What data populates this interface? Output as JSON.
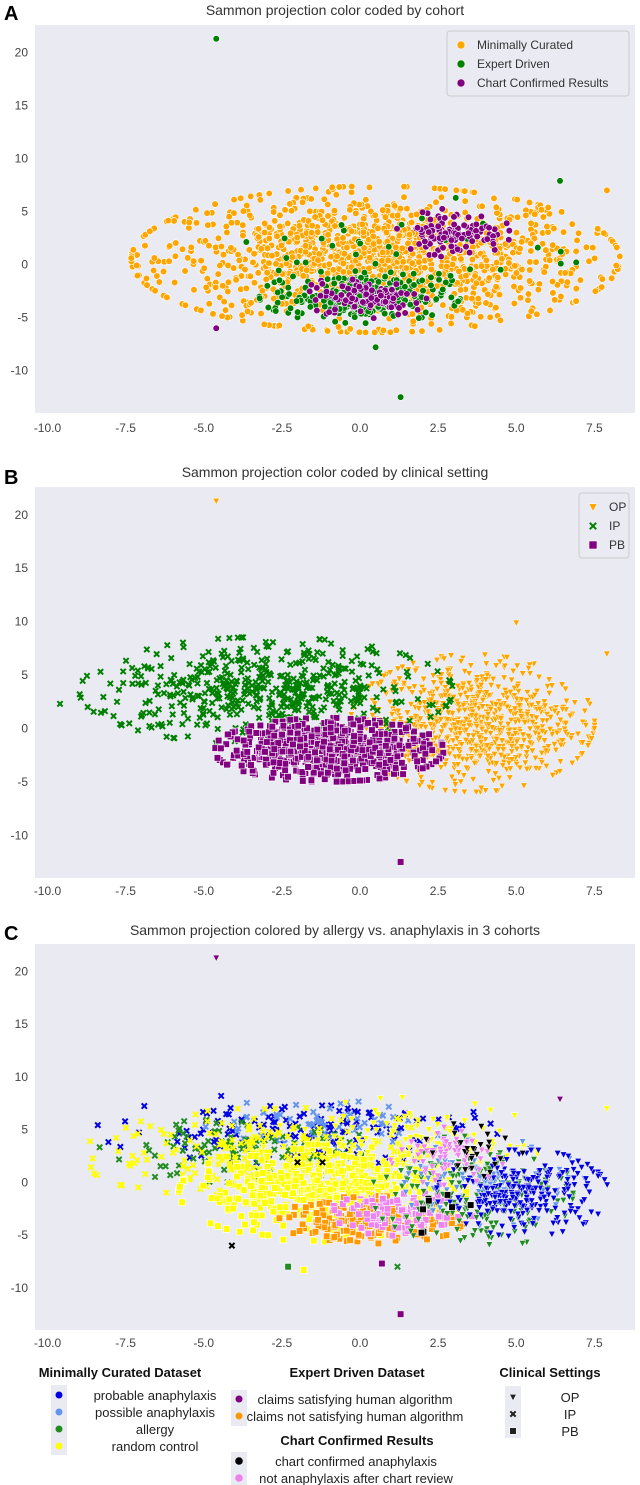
{
  "chart_data": [
    {
      "type": "scatter",
      "letter": "A",
      "title": "Sammon projection color coded by cohort",
      "xlim": [
        -10.4,
        8.8
      ],
      "ylim": [
        -14,
        22.6
      ],
      "xticks": [
        -10.0,
        -7.5,
        -5.0,
        -2.5,
        0.0,
        2.5,
        5.0,
        7.5
      ],
      "yticks": [
        20,
        15,
        10,
        5,
        0,
        -5,
        -10
      ],
      "grid": false,
      "legend_position": "top-right",
      "legend": [
        {
          "label": "Minimally Curated",
          "color": "#FFA500",
          "marker": "circle"
        },
        {
          "label": "Expert Driven",
          "color": "#008000",
          "marker": "circle"
        },
        {
          "label": "Chart Confirmed Results",
          "color": "#800080",
          "marker": "circle"
        }
      ],
      "clusters": [
        {
          "series": "Minimally Curated",
          "color": "#FFA500",
          "marker": "circle",
          "center": [
            0.5,
            0.5
          ],
          "spread": [
            3.4,
            3.0
          ],
          "n": 1400
        },
        {
          "series": "Expert Driven",
          "color": "#008000",
          "marker": "circle",
          "center": [
            0,
            -3
          ],
          "spread": [
            1.4,
            1.1
          ],
          "n": 260
        },
        {
          "series": "Expert Driven",
          "color": "#008000",
          "marker": "circle",
          "center": [
            2,
            1
          ],
          "spread": [
            2.5,
            2.5
          ],
          "n": 40
        },
        {
          "series": "Chart Confirmed Results",
          "color": "#800080",
          "marker": "circle",
          "center": [
            0.2,
            -3
          ],
          "spread": [
            0.9,
            0.9
          ],
          "n": 110
        },
        {
          "series": "Chart Confirmed Results",
          "color": "#800080",
          "marker": "circle",
          "center": [
            3,
            3
          ],
          "spread": [
            0.8,
            1.0
          ],
          "n": 110
        }
      ],
      "outliers": [
        {
          "x": -4.6,
          "y": 21.3,
          "color": "#008000",
          "marker": "circle"
        },
        {
          "x": 1.3,
          "y": -12.5,
          "color": "#008000",
          "marker": "circle"
        },
        {
          "x": 7.9,
          "y": 7.0,
          "color": "#FFA500",
          "marker": "circle"
        },
        {
          "x": -4.6,
          "y": -6.0,
          "color": "#800080",
          "marker": "circle"
        },
        {
          "x": 6.4,
          "y": 7.9,
          "color": "#008000",
          "marker": "circle"
        },
        {
          "x": 0.5,
          "y": -7.8,
          "color": "#008000",
          "marker": "circle"
        }
      ]
    },
    {
      "type": "scatter",
      "letter": "B",
      "title": "Sammon projection color coded by clinical setting",
      "xlim": [
        -10.4,
        8.8
      ],
      "ylim": [
        -14,
        22.6
      ],
      "xticks": [
        -10.0,
        -7.5,
        -5.0,
        -2.5,
        0.0,
        2.5,
        5.0,
        7.5
      ],
      "yticks": [
        20,
        15,
        10,
        5,
        0,
        -5,
        -10
      ],
      "grid": false,
      "legend_position": "top-right",
      "legend": [
        {
          "label": "OP",
          "color": "#FFA500",
          "marker": "triangle"
        },
        {
          "label": "IP",
          "color": "#008000",
          "marker": "x"
        },
        {
          "label": "PB",
          "color": "#800080",
          "marker": "square"
        }
      ],
      "clusters": [
        {
          "series": "OP",
          "color": "#FFA500",
          "marker": "triangle",
          "center": [
            3.6,
            0.5
          ],
          "spread": [
            1.7,
            2.8
          ],
          "n": 800
        },
        {
          "series": "IP",
          "color": "#008000",
          "marker": "x",
          "center": [
            -3,
            3.5
          ],
          "spread": [
            2.6,
            2.2
          ],
          "n": 500
        },
        {
          "series": "PB",
          "color": "#800080",
          "marker": "square",
          "center": [
            -1,
            -2
          ],
          "spread": [
            1.6,
            1.3
          ],
          "n": 700
        }
      ],
      "outliers": [
        {
          "x": -4.6,
          "y": 21.3,
          "color": "#FFA500",
          "marker": "triangle"
        },
        {
          "x": 1.3,
          "y": -12.5,
          "color": "#800080",
          "marker": "square"
        },
        {
          "x": 7.9,
          "y": 7.0,
          "color": "#FFA500",
          "marker": "triangle"
        },
        {
          "x": 5.0,
          "y": 9.9,
          "color": "#FFA500",
          "marker": "triangle"
        },
        {
          "x": -9.6,
          "y": 2.3,
          "color": "#008000",
          "marker": "x"
        }
      ]
    },
    {
      "type": "scatter",
      "letter": "C",
      "title": "Sammon projection colored by allergy vs. anaphylaxis in 3 cohorts",
      "xlim": [
        -10.4,
        8.8
      ],
      "ylim": [
        -14,
        22.6
      ],
      "xticks": [
        -10.0,
        -7.5,
        -5.0,
        -2.5,
        0.0,
        2.5,
        5.0,
        7.5
      ],
      "yticks": [
        20,
        15,
        10,
        5,
        0,
        -5,
        -10
      ],
      "grid": false,
      "clusters": [
        {
          "series": "probable anaphylaxis / IP",
          "color": "#0000E0",
          "marker": "x",
          "center": [
            -2,
            5
          ],
          "spread": [
            2.8,
            1.5
          ],
          "n": 150
        },
        {
          "series": "possible anaphylaxis / IP",
          "color": "#6495ED",
          "marker": "x",
          "center": [
            -1.5,
            5.5
          ],
          "spread": [
            2,
            1
          ],
          "n": 60
        },
        {
          "series": "allergy / IP",
          "color": "#228B22",
          "marker": "x",
          "center": [
            -4,
            3
          ],
          "spread": [
            2,
            1.3
          ],
          "n": 110
        },
        {
          "series": "random control / IP",
          "color": "#FFFF00",
          "marker": "x",
          "center": [
            -2.5,
            2.5
          ],
          "spread": [
            2.8,
            2
          ],
          "n": 260
        },
        {
          "series": "random control / PB",
          "color": "#FFFF00",
          "marker": "square",
          "center": [
            -1.2,
            -1
          ],
          "spread": [
            2,
            2
          ],
          "n": 420
        },
        {
          "series": "claims not satisfying / PB",
          "color": "#FF9900",
          "marker": "square",
          "center": [
            0.4,
            -3.6
          ],
          "spread": [
            1.3,
            1
          ],
          "n": 200
        },
        {
          "series": "not anaphylaxis after review / PB",
          "color": "#EE82EE",
          "marker": "square",
          "center": [
            1.3,
            -3
          ],
          "spread": [
            1,
            0.9
          ],
          "n": 110
        },
        {
          "series": "random control / OP",
          "color": "#FFFF00",
          "marker": "triangle",
          "center": [
            1.5,
            3
          ],
          "spread": [
            2,
            2.2
          ],
          "n": 160
        },
        {
          "series": "allergy / OP",
          "color": "#228B22",
          "marker": "triangle",
          "center": [
            3.6,
            -1
          ],
          "spread": [
            1.4,
            2.4
          ],
          "n": 200
        },
        {
          "series": "possible anaphylaxis / OP",
          "color": "#6495ED",
          "marker": "triangle",
          "center": [
            4.2,
            0
          ],
          "spread": [
            1.3,
            1.8
          ],
          "n": 80
        },
        {
          "series": "probable anaphylaxis / OP",
          "color": "#0000E0",
          "marker": "triangle",
          "center": [
            5.2,
            -1
          ],
          "spread": [
            1.2,
            1.8
          ],
          "n": 250
        },
        {
          "series": "not anaphylaxis after review / OP",
          "color": "#EE82EE",
          "marker": "triangle",
          "center": [
            2.8,
            2.5
          ],
          "spread": [
            0.8,
            1.2
          ],
          "n": 80
        },
        {
          "series": "chart confirmed anaphylaxis / OP",
          "color": "#000000",
          "marker": "triangle",
          "center": [
            3.6,
            3
          ],
          "spread": [
            0.7,
            1.2
          ],
          "n": 30
        },
        {
          "series": "chart confirmed anaphylaxis / PB",
          "color": "#000000",
          "marker": "square",
          "center": [
            2.4,
            -2.5
          ],
          "spread": [
            0.5,
            1.2
          ],
          "n": 8
        }
      ],
      "outliers": [
        {
          "x": -4.6,
          "y": 21.3,
          "color": "#800080",
          "marker": "triangle"
        },
        {
          "x": 1.3,
          "y": -12.5,
          "color": "#800080",
          "marker": "square"
        },
        {
          "x": -2.3,
          "y": -8.0,
          "color": "#228B22",
          "marker": "square"
        },
        {
          "x": -1.8,
          "y": -8.3,
          "color": "#FFFF00",
          "marker": "square"
        },
        {
          "x": 0.7,
          "y": -7.7,
          "color": "#800080",
          "marker": "square"
        },
        {
          "x": 1.2,
          "y": -8.0,
          "color": "#228B22",
          "marker": "x"
        },
        {
          "x": 7.9,
          "y": 7.0,
          "color": "#FFFF00",
          "marker": "triangle"
        },
        {
          "x": 6.4,
          "y": 7.9,
          "color": "#800080",
          "marker": "triangle"
        },
        {
          "x": -4.1,
          "y": -6.0,
          "color": "#000000",
          "marker": "x"
        },
        {
          "x": -2,
          "y": 1.9,
          "color": "#000000",
          "marker": "x"
        },
        {
          "x": -1.2,
          "y": 1.9,
          "color": "#000000",
          "marker": "x"
        }
      ]
    }
  ],
  "legend_c": {
    "groups": [
      {
        "title": "Minimally Curated Dataset",
        "items": [
          {
            "label": "probable anaphylaxis",
            "color": "#0000E0"
          },
          {
            "label": "possible anaphylaxis",
            "color": "#6495ED"
          },
          {
            "label": "allergy",
            "color": "#228B22"
          },
          {
            "label": "random control",
            "color": "#FFFF00"
          }
        ]
      },
      {
        "title": "Expert Driven Dataset",
        "items": [
          {
            "label": "claims satisfying human algorithm",
            "color": "#800080"
          },
          {
            "label": "claims not satisfying human algorithm",
            "color": "#FF9900"
          }
        ]
      },
      {
        "title": "Chart Confirmed Results",
        "items": [
          {
            "label": "chart confirmed anaphylaxis",
            "color": "#000000"
          },
          {
            "label": "not anaphylaxis after chart review",
            "color": "#EE82EE"
          }
        ]
      },
      {
        "title": "Clinical Settings",
        "items": [
          {
            "label": "OP",
            "marker": "triangle"
          },
          {
            "label": "IP",
            "marker": "x"
          },
          {
            "label": "PB",
            "marker": "square"
          }
        ]
      }
    ]
  },
  "colors": {
    "plot_bg": "#EAEAF2"
  }
}
